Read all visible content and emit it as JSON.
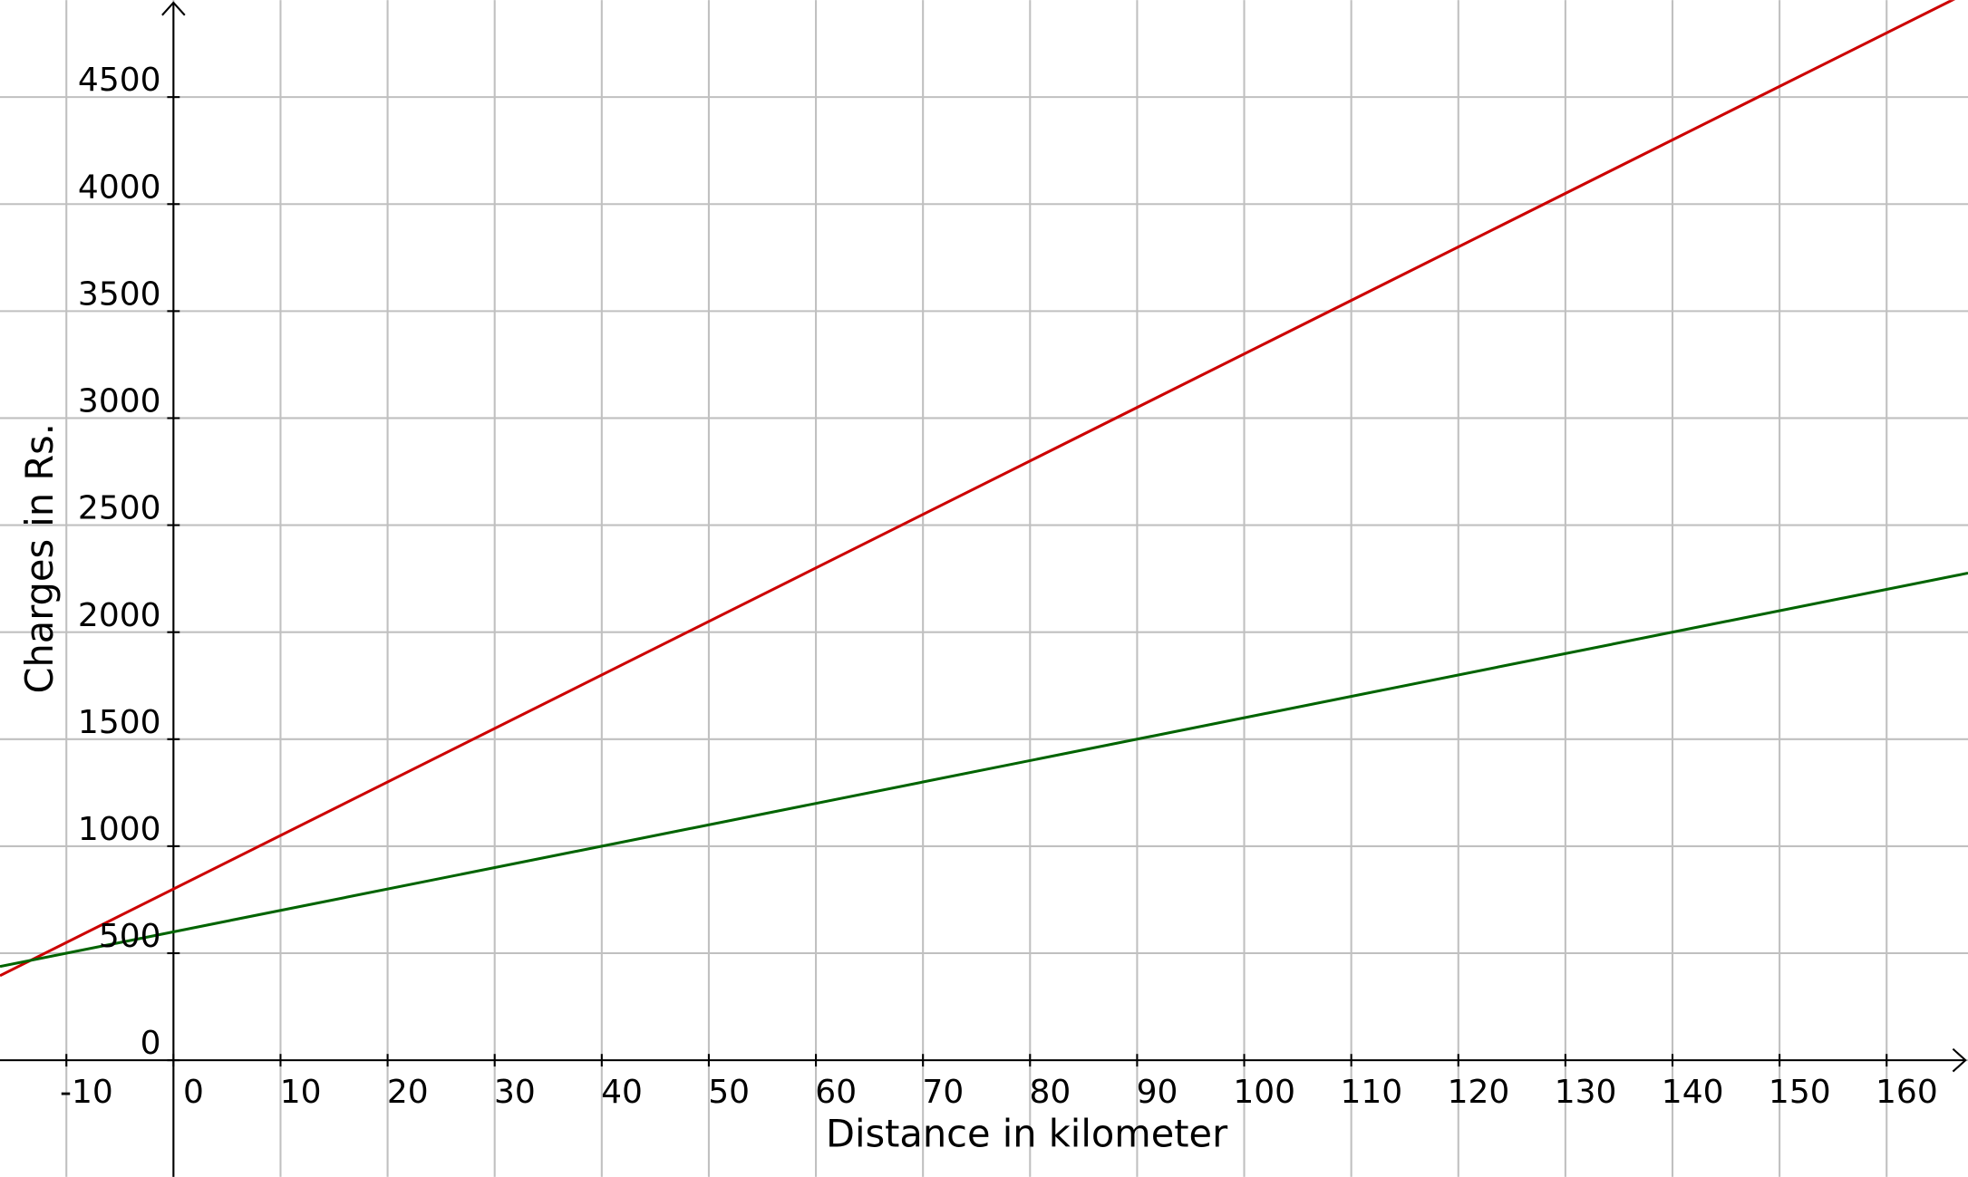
{
  "chart_data": {
    "type": "line",
    "x_label": "Distance in kilometer",
    "y_label": "Charges in Rs.",
    "xlim": [
      -16.2,
      167.6
    ],
    "ylim": [
      -545,
      4953
    ],
    "xticks": [
      -10,
      0,
      10,
      20,
      30,
      40,
      50,
      60,
      70,
      80,
      90,
      100,
      110,
      120,
      130,
      140,
      150,
      160
    ],
    "yticks": [
      0,
      500,
      1000,
      1500,
      2000,
      2500,
      3000,
      3500,
      4000,
      4500
    ],
    "grid": true,
    "series": [
      {
        "color": "#cc0000",
        "x": [
          -16.2,
          167.6
        ],
        "values": [
          395,
          4990
        ]
      },
      {
        "color": "#006400",
        "x": [
          -16.2,
          167.6
        ],
        "values": [
          438,
          2276
        ]
      }
    ]
  }
}
